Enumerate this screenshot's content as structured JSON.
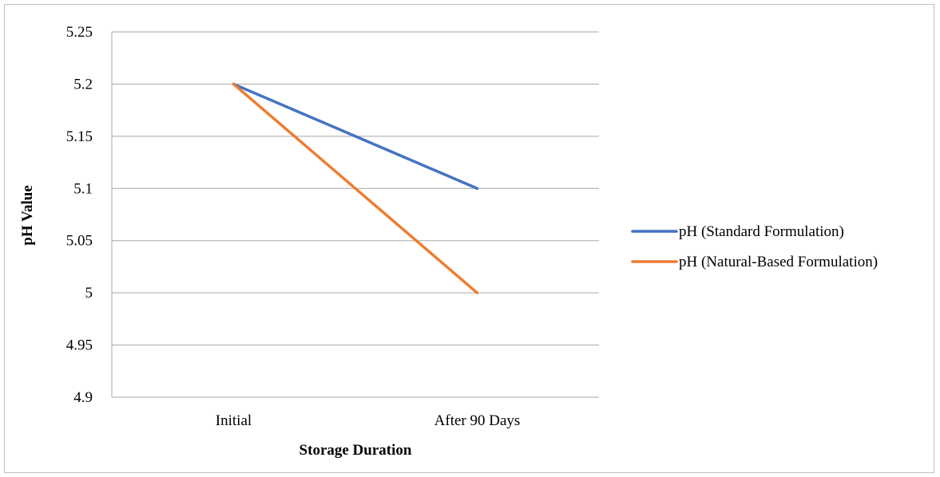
{
  "chart_data": {
    "type": "line",
    "title": "",
    "xlabel": "Storage Duration",
    "ylabel": "pH Value",
    "categories": [
      "Initial",
      "After 90 Days"
    ],
    "ylim": [
      4.9,
      5.25
    ],
    "yticks": [
      "4.9",
      "4.95",
      "5",
      "5.05",
      "5.1",
      "5.15",
      "5.2",
      "5.25"
    ],
    "grid": true,
    "legend_position": "right",
    "series": [
      {
        "name": "pH (Standard Formulation)",
        "values": [
          5.2,
          5.1
        ],
        "color": "#4472c4"
      },
      {
        "name": "pH (Natural-Based Formulation)",
        "values": [
          5.2,
          5.0
        ],
        "color": "#ed7d31"
      }
    ]
  }
}
